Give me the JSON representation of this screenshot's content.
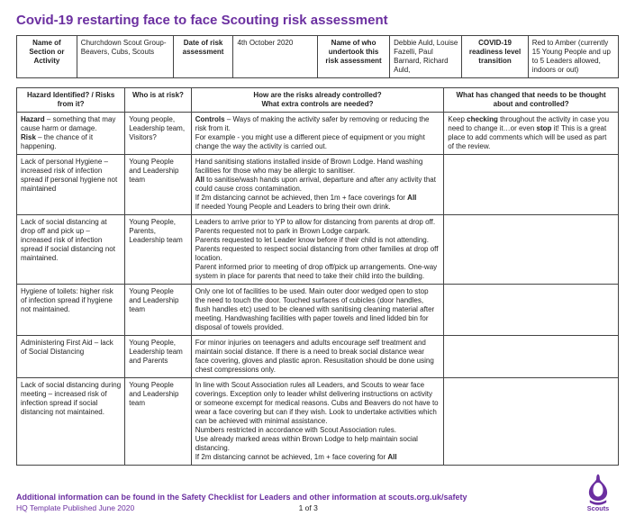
{
  "title": "Covid-19 restarting face to face Scouting risk assessment",
  "info": {
    "h1": "Name of Section or Activity",
    "v1": "Churchdown Scout Group- Beavers, Cubs, Scouts",
    "h2": "Date of risk assessment",
    "v2": "4th October 2020",
    "h3": "Name of who undertook this risk assessment",
    "v3": "Debbie Auld, Louise Fazelli, Paul Barnard, Richard Auld,",
    "h4": "COVID-19 readiness level transition",
    "v4": "Red to Amber (currently 15 Young People and up to 5 Leaders allowed, indoors or out)"
  },
  "cols": {
    "c1": "Hazard Identified? / Risks from it?",
    "c2": "Who is at risk?",
    "c3": "How are the risks already controlled?",
    "c3b": "What extra controls are needed?",
    "c4": "What has changed that needs to be thought about and controlled?"
  },
  "rows": [
    {
      "a": "Hazard – something that may cause harm or damage.\nRisk – the chance of it happening.",
      "b": "Young people, Leadership team, Visitors?",
      "c": "Controls – Ways of making the activity safer by removing or reducing the risk from it.\nFor example - you might use a different piece of equipment or you might change the way the activity is carried out.",
      "d": "Keep checking throughout the activity in case you need to change it…or even stop it! This is a great place to add comments which will be used as part of the review."
    },
    {
      "a": "Lack of personal Hygiene – increased risk of infection spread if personal hygiene not maintained",
      "b": "Young People and Leadership team",
      "c": "Hand sanitising stations installed inside of Brown Lodge. Hand washing facilities for those who may be allergic to sanitiser.\nAll to sanitise/wash hands upon arrival, departure and after any activity that could cause cross contamination.\nIf 2m distancing cannot be achieved, then 1m + face coverings for All\nIf needed Young People and Leaders to bring their own drink.",
      "d": ""
    },
    {
      "a": "Lack of social distancing at drop off and pick up – increased risk of infection spread if social distancing not maintained.",
      "b": "Young People, Parents, Leadership team",
      "c": "Leaders to arrive prior to YP to allow for distancing from parents at drop off.\nParents requested not to park in Brown Lodge carpark.\nParents requested to let Leader know before if their child is not attending.\nParents requested to respect social distancing from other families at drop off location.\nParent informed prior to meeting of drop off/pick up arrangements. One-way system in place for parents that need to take their child into the building.",
      "d": ""
    },
    {
      "a": "Hygiene of toilets: higher risk of infection spread if hygiene not maintained.",
      "b": "Young People and Leadership team",
      "c": "Only one lot of facilities to be used. Main outer door wedged open to stop the need to touch the door. Touched surfaces of cubicles (door handles, flush handles etc) used to be cleaned with sanitising cleaning material after meeting. Handwashing facilities with paper towels and lined lidded bin for disposal of towels provided.",
      "d": ""
    },
    {
      "a": "Administering First Aid – lack of Social Distancing",
      "b": "Young People, Leadership team and Parents",
      "c": "For minor injuries on teenagers and adults encourage self treatment and maintain social distance. If there is a need to break social distance wear face covering, gloves and plastic apron. Resusitation should be done using chest compressions only.",
      "d": ""
    },
    {
      "a": "Lack of social distancing during meeting – increased risk of infection spread if social distancing not maintained.",
      "b": "Young People and Leadership team",
      "c": "In line with Scout Association rules all Leaders, and Scouts to wear face coverings. Exception only to leader whilst delivering instructions on activity or someone excempt for medical reasons. Cubs and Beavers do not have to wear a face covering but can if they wish. Look to undertake activities which can be achieved with minimal assistance.\nNumbers restricted in accordance with Scout Association rules.\nUse already marked areas within Brown Lodge to help maintain social distancing.\nIf 2m distancing cannot be achieved, 1m + face covering for All",
      "d": ""
    }
  ],
  "footer": {
    "line1": "Additional information can be found in the Safety Checklist for Leaders and other information at scouts.org.uk/safety",
    "line2": "HQ Template Published June 2020",
    "page": "1 of 3"
  },
  "colors": {
    "purple": "#6b2fa0",
    "border": "#444444"
  }
}
